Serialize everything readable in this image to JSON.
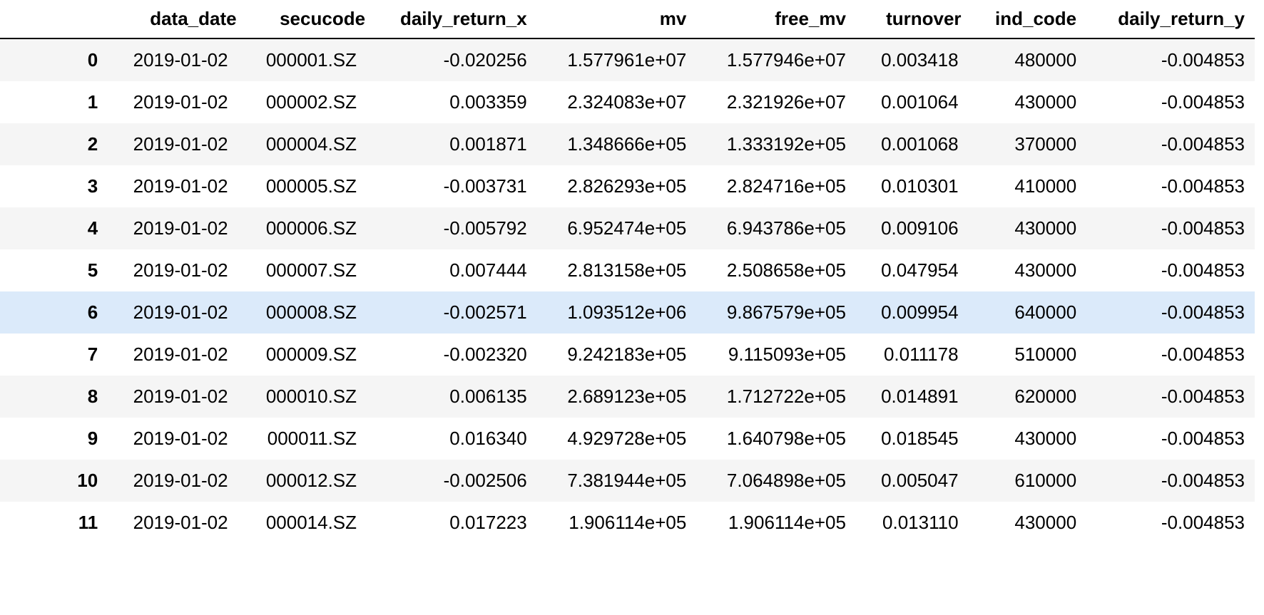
{
  "table": {
    "columns": [
      "",
      "data_date",
      "secucode",
      "daily_return_x",
      "mv",
      "free_mv",
      "turnover",
      "ind_code",
      "daily_return_y"
    ],
    "highlight_row": 6,
    "colors": {
      "stripe": "#f5f5f5",
      "hover": "#dbeafa",
      "text": "#000000",
      "header_rule": "#000000"
    },
    "rows": [
      [
        "0",
        "2019-01-02",
        "000001.SZ",
        "-0.020256",
        "1.577961e+07",
        "1.577946e+07",
        "0.003418",
        "480000",
        "-0.004853"
      ],
      [
        "1",
        "2019-01-02",
        "000002.SZ",
        "0.003359",
        "2.324083e+07",
        "2.321926e+07",
        "0.001064",
        "430000",
        "-0.004853"
      ],
      [
        "2",
        "2019-01-02",
        "000004.SZ",
        "0.001871",
        "1.348666e+05",
        "1.333192e+05",
        "0.001068",
        "370000",
        "-0.004853"
      ],
      [
        "3",
        "2019-01-02",
        "000005.SZ",
        "-0.003731",
        "2.826293e+05",
        "2.824716e+05",
        "0.010301",
        "410000",
        "-0.004853"
      ],
      [
        "4",
        "2019-01-02",
        "000006.SZ",
        "-0.005792",
        "6.952474e+05",
        "6.943786e+05",
        "0.009106",
        "430000",
        "-0.004853"
      ],
      [
        "5",
        "2019-01-02",
        "000007.SZ",
        "0.007444",
        "2.813158e+05",
        "2.508658e+05",
        "0.047954",
        "430000",
        "-0.004853"
      ],
      [
        "6",
        "2019-01-02",
        "000008.SZ",
        "-0.002571",
        "1.093512e+06",
        "9.867579e+05",
        "0.009954",
        "640000",
        "-0.004853"
      ],
      [
        "7",
        "2019-01-02",
        "000009.SZ",
        "-0.002320",
        "9.242183e+05",
        "9.115093e+05",
        "0.011178",
        "510000",
        "-0.004853"
      ],
      [
        "8",
        "2019-01-02",
        "000010.SZ",
        "0.006135",
        "2.689123e+05",
        "1.712722e+05",
        "0.014891",
        "620000",
        "-0.004853"
      ],
      [
        "9",
        "2019-01-02",
        "000011.SZ",
        "0.016340",
        "4.929728e+05",
        "1.640798e+05",
        "0.018545",
        "430000",
        "-0.004853"
      ],
      [
        "10",
        "2019-01-02",
        "000012.SZ",
        "-0.002506",
        "7.381944e+05",
        "7.064898e+05",
        "0.005047",
        "610000",
        "-0.004853"
      ],
      [
        "11",
        "2019-01-02",
        "000014.SZ",
        "0.017223",
        "1.906114e+05",
        "1.906114e+05",
        "0.013110",
        "430000",
        "-0.004853"
      ]
    ]
  }
}
